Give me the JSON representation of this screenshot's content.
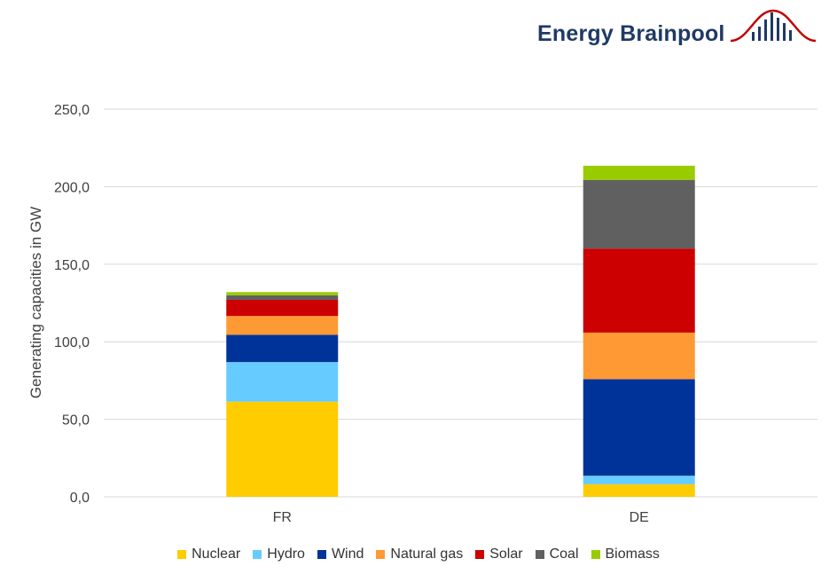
{
  "brand": {
    "name": "Energy Brainpool",
    "colors": {
      "text": "#1f3a63",
      "mark_dark": "#1f3a63",
      "mark_curve": "#c00000"
    }
  },
  "chart_data": {
    "type": "bar",
    "stacked": true,
    "categories": [
      "FR",
      "DE"
    ],
    "ylabel": "Generating capacities in GW",
    "xlabel": "",
    "ylim": [
      0,
      250
    ],
    "yticks": [
      "0,0",
      "50,0",
      "100,0",
      "150,0",
      "200,0",
      "250,0"
    ],
    "ytick_values": [
      0,
      50,
      100,
      150,
      200,
      250
    ],
    "grid": true,
    "legend_position": "bottom",
    "series": [
      {
        "name": "Nuclear",
        "color": "#ffcc00",
        "values": [
          61.4,
          8.1
        ]
      },
      {
        "name": "Hydro",
        "color": "#66ccff",
        "values": [
          25.5,
          5.5
        ]
      },
      {
        "name": "Wind",
        "color": "#003399",
        "values": [
          17.6,
          62.3
        ]
      },
      {
        "name": "Natural gas",
        "color": "#ff9933",
        "values": [
          12.1,
          30.0
        ]
      },
      {
        "name": "Solar",
        "color": "#cc0000",
        "values": [
          10.4,
          54.2
        ]
      },
      {
        "name": "Coal",
        "color": "#606060",
        "values": [
          3.0,
          44.3
        ]
      },
      {
        "name": "Biomass",
        "color": "#99cc00",
        "values": [
          2.0,
          9.1
        ]
      }
    ]
  }
}
